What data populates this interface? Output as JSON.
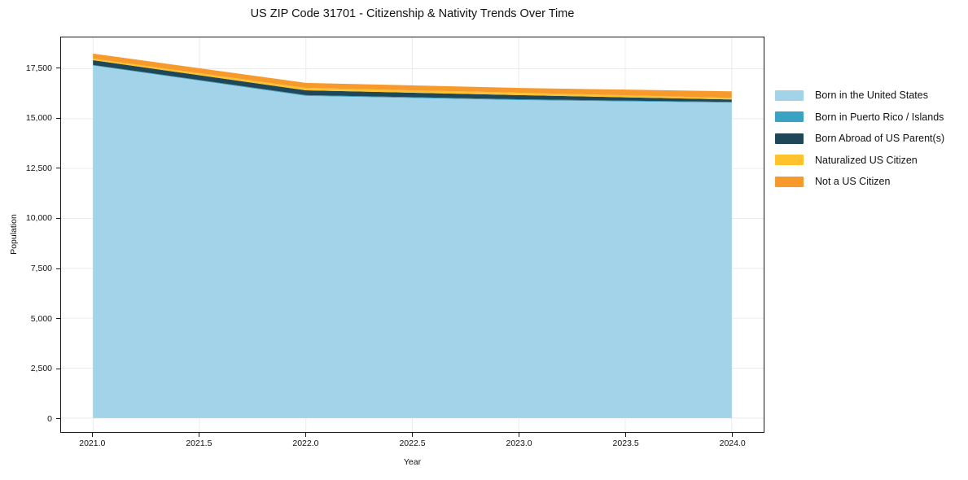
{
  "chart_data": {
    "type": "area",
    "stacked": true,
    "title": "US ZIP Code 31701 - Citizenship & Nativity Trends Over Time",
    "xlabel": "Year",
    "ylabel": "Population",
    "x": [
      2021,
      2022,
      2023,
      2024
    ],
    "series": [
      {
        "name": "Born in the United States",
        "color": "#a2d3e8",
        "values": [
          17660,
          16140,
          15930,
          15800
        ]
      },
      {
        "name": "Born in Puerto Rico / Islands",
        "color": "#3aa3c4",
        "values": [
          30,
          40,
          40,
          40
        ]
      },
      {
        "name": "Born Abroad of US Parent(s)",
        "color": "#1f4757",
        "values": [
          240,
          240,
          210,
          120
        ]
      },
      {
        "name": "Naturalized US Citizen",
        "color": "#fdc22d",
        "values": [
          80,
          120,
          120,
          80
        ]
      },
      {
        "name": "Not a US Citizen",
        "color": "#f8992c",
        "values": [
          250,
          250,
          240,
          330
        ]
      }
    ],
    "totals": [
      18260,
      16790,
      16540,
      16370
    ],
    "xlim": [
      2020.85,
      2024.15
    ],
    "ylim": [
      -700,
      19070
    ],
    "xticks": {
      "values": [
        2021,
        2021.5,
        2022,
        2022.5,
        2023,
        2023.5,
        2024
      ],
      "labels": [
        "2021.0",
        "2021.5",
        "2022.0",
        "2022.5",
        "2023.0",
        "2023.5",
        "2024.0"
      ]
    },
    "yticks": {
      "values": [
        0,
        2500,
        5000,
        7500,
        10000,
        12500,
        15000,
        17500
      ],
      "labels": [
        "0",
        "2,500",
        "5,000",
        "7,500",
        "10,000",
        "12,500",
        "15,000",
        "17,500"
      ]
    },
    "grid": {
      "show": true,
      "color": "#ebebeb"
    },
    "legend_position": "right-outside"
  }
}
